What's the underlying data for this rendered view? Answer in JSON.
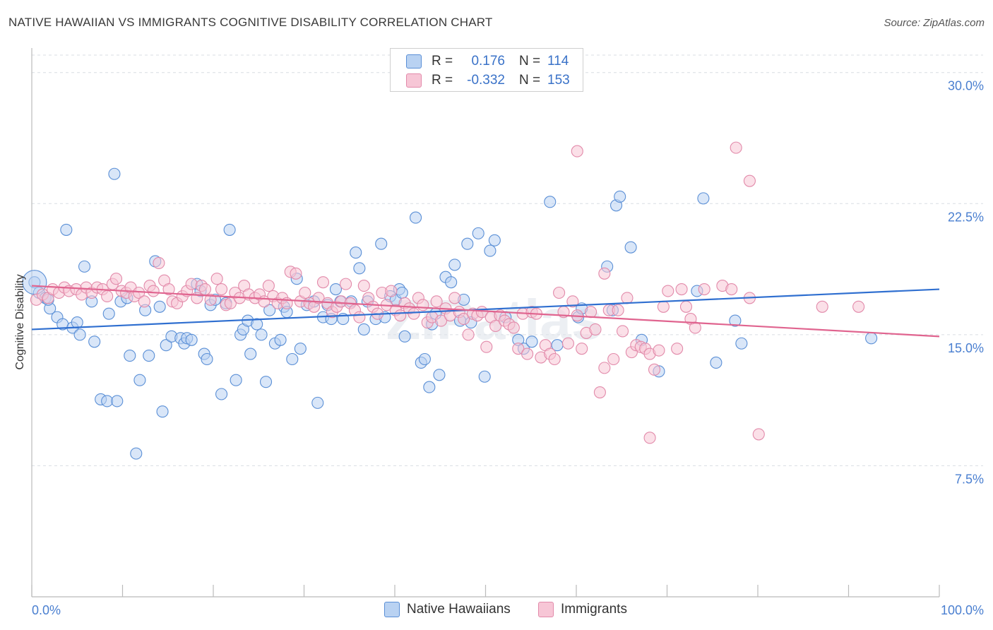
{
  "title": "NATIVE HAWAIIAN VS IMMIGRANTS COGNITIVE DISABILITY CORRELATION CHART",
  "source": "Source: ZipAtlas.com",
  "watermark": "ZIPatlas",
  "legend": {
    "rows": [
      {
        "r_label": "R =",
        "r_value": "0.176",
        "n_label": "N =",
        "n_value": "114",
        "fill": "#b9d2f2",
        "stroke": "#5a8fd6"
      },
      {
        "r_label": "R =",
        "r_value": "-0.332",
        "n_label": "N =",
        "n_value": "153",
        "fill": "#f7c6d6",
        "stroke": "#e28aaa"
      }
    ]
  },
  "bottom_legend": {
    "items": [
      {
        "label": "Native Hawaiians",
        "fill": "#b9d2f2",
        "stroke": "#5a8fd6"
      },
      {
        "label": "Immigrants",
        "fill": "#f7c6d6",
        "stroke": "#e28aaa"
      }
    ]
  },
  "chart_data": {
    "type": "scatter",
    "title": "NATIVE HAWAIIAN VS IMMIGRANTS COGNITIVE DISABILITY CORRELATION CHART",
    "xlabel": "",
    "ylabel": "Cognitive Disability",
    "xlim": [
      0,
      100
    ],
    "ylim": [
      0,
      31
    ],
    "x_tick_labels": [
      "0.0%",
      "100.0%"
    ],
    "y_ticks": [
      7.5,
      15.0,
      22.5,
      30.0
    ],
    "y_tick_labels": [
      "7.5%",
      "15.0%",
      "22.5%",
      "30.0%"
    ],
    "grid": true,
    "colors": {
      "blue": "#3a72c8",
      "blue_line": "#2f6fd0",
      "pink_line": "#e0648f",
      "tick_label": "#4a7fd0"
    },
    "series": [
      {
        "name": "Native Hawaiians",
        "color": "#5a8fd6",
        "fill": "#b9d2f2",
        "trend": {
          "x": [
            0,
            100
          ],
          "y": [
            15.3,
            17.6
          ]
        },
        "points": [
          [
            0.3,
            18.0
          ],
          [
            0.8,
            17.4
          ],
          [
            1.5,
            17.1
          ],
          [
            2.0,
            16.5
          ],
          [
            1.8,
            17.0
          ],
          [
            2.8,
            16.0
          ],
          [
            3.4,
            15.6
          ],
          [
            4.5,
            15.4
          ],
          [
            5.0,
            15.7
          ],
          [
            5.3,
            15.0
          ],
          [
            3.8,
            21.0
          ],
          [
            5.8,
            18.9
          ],
          [
            6.6,
            16.9
          ],
          [
            6.9,
            14.6
          ],
          [
            7.6,
            11.3
          ],
          [
            8.3,
            11.2
          ],
          [
            8.5,
            16.2
          ],
          [
            9.1,
            24.2
          ],
          [
            9.4,
            11.2
          ],
          [
            9.8,
            16.9
          ],
          [
            10.5,
            17.1
          ],
          [
            10.8,
            13.8
          ],
          [
            11.5,
            8.2
          ],
          [
            11.9,
            12.4
          ],
          [
            12.5,
            16.4
          ],
          [
            12.9,
            13.8
          ],
          [
            13.6,
            19.2
          ],
          [
            14.1,
            16.6
          ],
          [
            14.4,
            10.6
          ],
          [
            14.8,
            14.4
          ],
          [
            15.4,
            14.9
          ],
          [
            16.4,
            14.8
          ],
          [
            16.8,
            14.5
          ],
          [
            17.1,
            14.8
          ],
          [
            17.6,
            14.7
          ],
          [
            18.2,
            17.9
          ],
          [
            18.6,
            17.5
          ],
          [
            19.0,
            13.9
          ],
          [
            19.3,
            13.6
          ],
          [
            19.7,
            16.7
          ],
          [
            20.2,
            17.0
          ],
          [
            20.9,
            11.6
          ],
          [
            21.4,
            16.8
          ],
          [
            21.8,
            21.0
          ],
          [
            22.5,
            12.4
          ],
          [
            23.0,
            15.0
          ],
          [
            23.3,
            15.3
          ],
          [
            23.8,
            15.8
          ],
          [
            24.1,
            13.9
          ],
          [
            24.8,
            15.6
          ],
          [
            25.3,
            15.0
          ],
          [
            25.8,
            12.3
          ],
          [
            26.2,
            16.4
          ],
          [
            26.8,
            14.5
          ],
          [
            27.4,
            14.7
          ],
          [
            27.8,
            16.6
          ],
          [
            28.1,
            16.3
          ],
          [
            28.7,
            13.6
          ],
          [
            29.2,
            18.2
          ],
          [
            29.6,
            14.2
          ],
          [
            30.3,
            16.7
          ],
          [
            31.1,
            16.9
          ],
          [
            31.5,
            11.1
          ],
          [
            32.1,
            16.0
          ],
          [
            32.6,
            16.7
          ],
          [
            33.0,
            15.9
          ],
          [
            33.5,
            17.6
          ],
          [
            34.0,
            16.9
          ],
          [
            34.3,
            15.9
          ],
          [
            35.2,
            16.9
          ],
          [
            35.7,
            19.7
          ],
          [
            36.1,
            18.8
          ],
          [
            36.6,
            15.3
          ],
          [
            37.0,
            16.9
          ],
          [
            37.9,
            15.9
          ],
          [
            38.5,
            20.2
          ],
          [
            38.9,
            16.0
          ],
          [
            39.5,
            17.2
          ],
          [
            40.1,
            17.0
          ],
          [
            40.5,
            17.6
          ],
          [
            40.8,
            17.4
          ],
          [
            41.1,
            14.9
          ],
          [
            42.3,
            21.7
          ],
          [
            42.9,
            13.4
          ],
          [
            43.3,
            13.6
          ],
          [
            43.8,
            12.0
          ],
          [
            44.1,
            15.6
          ],
          [
            44.5,
            16.2
          ],
          [
            44.9,
            12.7
          ],
          [
            45.6,
            18.3
          ],
          [
            46.2,
            18.0
          ],
          [
            46.6,
            19.0
          ],
          [
            47.2,
            15.8
          ],
          [
            47.6,
            17.0
          ],
          [
            48.0,
            20.2
          ],
          [
            48.4,
            15.7
          ],
          [
            49.2,
            20.8
          ],
          [
            49.9,
            12.6
          ],
          [
            50.5,
            19.8
          ],
          [
            51.0,
            20.4
          ],
          [
            52.2,
            16.0
          ],
          [
            53.6,
            14.7
          ],
          [
            54.2,
            14.2
          ],
          [
            55.1,
            14.6
          ],
          [
            57.1,
            22.6
          ],
          [
            57.9,
            14.4
          ],
          [
            60.2,
            16.0
          ],
          [
            60.6,
            16.5
          ],
          [
            63.4,
            18.9
          ],
          [
            64.0,
            16.4
          ],
          [
            64.4,
            22.4
          ],
          [
            64.8,
            22.9
          ],
          [
            66.0,
            20.0
          ],
          [
            67.2,
            14.7
          ],
          [
            69.1,
            12.9
          ],
          [
            73.3,
            17.5
          ],
          [
            74.0,
            22.8
          ],
          [
            75.4,
            13.4
          ],
          [
            77.5,
            15.8
          ],
          [
            78.2,
            14.5
          ],
          [
            92.5,
            14.8
          ]
        ]
      },
      {
        "name": "Immigrants",
        "color": "#e28aaa",
        "fill": "#f7c6d6",
        "trend": {
          "x": [
            0,
            100
          ],
          "y": [
            17.8,
            14.9
          ]
        },
        "points": [
          [
            0.5,
            17.0
          ],
          [
            1.2,
            17.3
          ],
          [
            1.8,
            17.1
          ],
          [
            2.3,
            17.6
          ],
          [
            3.0,
            17.4
          ],
          [
            3.6,
            17.7
          ],
          [
            4.1,
            17.5
          ],
          [
            4.9,
            17.6
          ],
          [
            5.5,
            17.3
          ],
          [
            6.0,
            17.7
          ],
          [
            6.6,
            17.4
          ],
          [
            7.2,
            17.7
          ],
          [
            7.8,
            17.6
          ],
          [
            8.3,
            17.2
          ],
          [
            8.9,
            17.9
          ],
          [
            9.3,
            18.2
          ],
          [
            9.9,
            17.5
          ],
          [
            10.4,
            17.4
          ],
          [
            10.9,
            17.7
          ],
          [
            11.3,
            17.2
          ],
          [
            11.8,
            17.4
          ],
          [
            12.4,
            16.9
          ],
          [
            13.0,
            17.8
          ],
          [
            13.4,
            17.5
          ],
          [
            14.0,
            19.1
          ],
          [
            14.6,
            18.1
          ],
          [
            15.1,
            17.6
          ],
          [
            15.5,
            16.9
          ],
          [
            16.0,
            16.8
          ],
          [
            16.6,
            17.2
          ],
          [
            17.1,
            17.5
          ],
          [
            17.6,
            17.9
          ],
          [
            18.2,
            17.1
          ],
          [
            18.7,
            17.8
          ],
          [
            19.1,
            17.6
          ],
          [
            19.7,
            17.0
          ],
          [
            20.4,
            18.2
          ],
          [
            20.9,
            17.6
          ],
          [
            21.4,
            16.7
          ],
          [
            21.9,
            16.8
          ],
          [
            22.4,
            17.4
          ],
          [
            22.9,
            17.1
          ],
          [
            23.4,
            17.8
          ],
          [
            23.9,
            17.3
          ],
          [
            24.6,
            17.1
          ],
          [
            25.1,
            17.3
          ],
          [
            25.6,
            16.9
          ],
          [
            26.1,
            17.8
          ],
          [
            26.6,
            17.2
          ],
          [
            27.1,
            16.8
          ],
          [
            27.6,
            17.1
          ],
          [
            28.1,
            16.8
          ],
          [
            28.5,
            18.6
          ],
          [
            29.1,
            18.5
          ],
          [
            29.6,
            16.9
          ],
          [
            30.1,
            17.4
          ],
          [
            30.6,
            16.8
          ],
          [
            31.1,
            16.6
          ],
          [
            31.6,
            17.1
          ],
          [
            32.1,
            18.0
          ],
          [
            32.6,
            16.8
          ],
          [
            33.1,
            16.3
          ],
          [
            33.6,
            16.6
          ],
          [
            34.1,
            16.9
          ],
          [
            34.6,
            17.9
          ],
          [
            35.1,
            16.8
          ],
          [
            35.6,
            16.4
          ],
          [
            36.1,
            16.0
          ],
          [
            36.6,
            17.8
          ],
          [
            37.1,
            17.1
          ],
          [
            37.6,
            16.6
          ],
          [
            38.1,
            16.2
          ],
          [
            38.6,
            17.4
          ],
          [
            39.1,
            16.7
          ],
          [
            39.6,
            17.5
          ],
          [
            40.1,
            16.4
          ],
          [
            40.6,
            16.1
          ],
          [
            41.1,
            16.8
          ],
          [
            41.6,
            16.5
          ],
          [
            42.1,
            16.2
          ],
          [
            42.6,
            17.1
          ],
          [
            43.1,
            16.7
          ],
          [
            43.6,
            15.7
          ],
          [
            44.1,
            16.0
          ],
          [
            44.6,
            16.9
          ],
          [
            45.1,
            15.8
          ],
          [
            45.6,
            16.5
          ],
          [
            46.1,
            16.1
          ],
          [
            46.6,
            17.1
          ],
          [
            47.1,
            16.3
          ],
          [
            47.6,
            15.9
          ],
          [
            48.1,
            15.0
          ],
          [
            48.6,
            16.2
          ],
          [
            49.1,
            16.1
          ],
          [
            49.6,
            16.3
          ],
          [
            50.1,
            14.3
          ],
          [
            50.6,
            16.0
          ],
          [
            51.1,
            15.5
          ],
          [
            51.6,
            16.1
          ],
          [
            52.1,
            15.8
          ],
          [
            52.6,
            15.6
          ],
          [
            53.1,
            15.4
          ],
          [
            53.6,
            14.2
          ],
          [
            54.1,
            16.2
          ],
          [
            54.6,
            13.9
          ],
          [
            55.1,
            16.3
          ],
          [
            55.6,
            16.2
          ],
          [
            56.1,
            13.7
          ],
          [
            56.6,
            14.4
          ],
          [
            57.1,
            13.9
          ],
          [
            57.6,
            13.6
          ],
          [
            58.1,
            17.4
          ],
          [
            58.6,
            16.3
          ],
          [
            59.1,
            14.5
          ],
          [
            59.6,
            16.9
          ],
          [
            60.1,
            16.1
          ],
          [
            60.6,
            14.2
          ],
          [
            61.1,
            15.1
          ],
          [
            61.6,
            16.3
          ],
          [
            62.1,
            15.3
          ],
          [
            62.6,
            11.7
          ],
          [
            63.1,
            13.1
          ],
          [
            63.6,
            16.4
          ],
          [
            64.1,
            13.6
          ],
          [
            64.6,
            16.4
          ],
          [
            65.1,
            15.2
          ],
          [
            65.6,
            17.1
          ],
          [
            66.1,
            14.0
          ],
          [
            66.6,
            14.4
          ],
          [
            67.1,
            14.3
          ],
          [
            67.6,
            14.2
          ],
          [
            68.1,
            13.9
          ],
          [
            68.6,
            13.0
          ],
          [
            69.1,
            14.1
          ],
          [
            69.6,
            16.6
          ],
          [
            70.1,
            17.5
          ],
          [
            71.1,
            14.2
          ],
          [
            71.6,
            17.6
          ],
          [
            72.1,
            16.6
          ],
          [
            72.6,
            15.9
          ],
          [
            73.1,
            15.4
          ],
          [
            74.1,
            17.6
          ],
          [
            76.1,
            17.8
          ],
          [
            77.1,
            17.6
          ],
          [
            79.1,
            17.1
          ],
          [
            80.1,
            9.3
          ],
          [
            68.1,
            9.1
          ],
          [
            63.1,
            18.5
          ],
          [
            60.1,
            25.5
          ],
          [
            77.6,
            25.7
          ],
          [
            79.1,
            23.8
          ],
          [
            87.1,
            16.6
          ],
          [
            91.1,
            16.6
          ]
        ]
      }
    ]
  }
}
